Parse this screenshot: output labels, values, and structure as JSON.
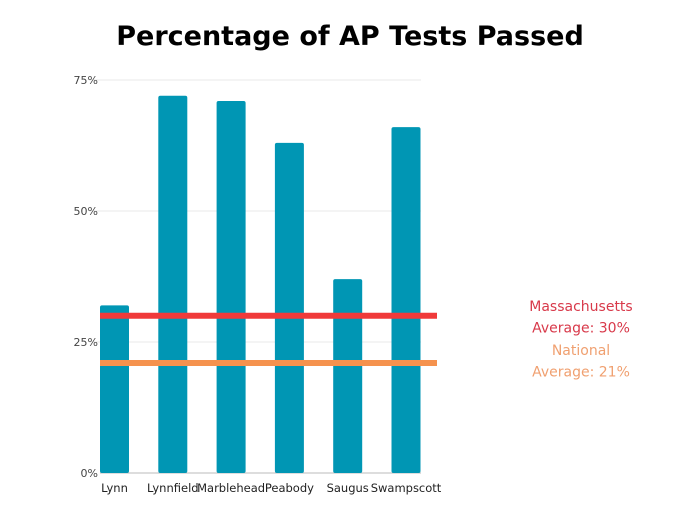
{
  "chart_data": {
    "type": "bar",
    "title": "Percentage of AP Tests Passed",
    "xlabel": "",
    "ylabel": "",
    "categories": [
      "Lynn",
      "Lynnfield",
      "Marblehead",
      "Peabody",
      "Saugus",
      "Swampscott"
    ],
    "values": [
      32,
      72,
      71,
      63,
      37,
      66
    ],
    "ylim": [
      0,
      75
    ],
    "yticks": [
      0,
      25,
      50,
      75
    ],
    "ytick_labels": [
      "0%",
      "25%",
      "50%",
      "75%"
    ],
    "grid": true,
    "bar_color": "#0096B4",
    "reference_lines": [
      {
        "label_lines": [
          "Massachusetts",
          "Average: 30%"
        ],
        "value": 30,
        "color": "#F03A3A",
        "text_color": "#D8394A"
      },
      {
        "label_lines": [
          "National",
          "Average: 21%"
        ],
        "value": 21,
        "color": "#F5924E",
        "text_color": "#F0A070"
      }
    ]
  }
}
